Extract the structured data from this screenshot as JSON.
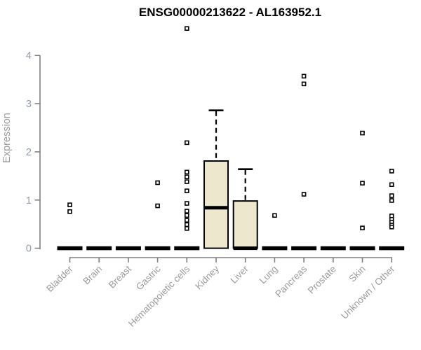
{
  "chart_data": {
    "type": "boxplot",
    "title": "ENSG00000213622 - AL163952.1",
    "ylabel": "Expression",
    "xlabel": "",
    "ylim": [
      0,
      4
    ],
    "yticks": [
      0,
      1,
      2,
      3,
      4
    ],
    "grid": false,
    "legend": "none",
    "categories": [
      "Bladder",
      "Brain",
      "Breast",
      "Gastric",
      "Hematopoietic cells",
      "Kidney",
      "Liver",
      "Lung",
      "Pancreas",
      "Prostate",
      "Skin",
      "Unknown / Other"
    ],
    "series": [
      {
        "name": "Bladder",
        "low": 0,
        "q1": 0,
        "median": 0,
        "q3": 0,
        "high": 0,
        "outliers": [
          0.9,
          0.76
        ]
      },
      {
        "name": "Brain",
        "low": 0,
        "q1": 0,
        "median": 0,
        "q3": 0,
        "high": 0,
        "outliers": []
      },
      {
        "name": "Breast",
        "low": 0,
        "q1": 0,
        "median": 0,
        "q3": 0,
        "high": 0,
        "outliers": []
      },
      {
        "name": "Gastric",
        "low": 0,
        "q1": 0,
        "median": 0,
        "q3": 0,
        "high": 0,
        "outliers": [
          1.36,
          0.88
        ]
      },
      {
        "name": "Hematopoietic cells",
        "low": 0,
        "q1": 0,
        "median": 0,
        "q3": 0,
        "high": 0,
        "outliers": [
          4.56,
          2.19,
          1.58,
          1.48,
          1.38,
          1.19,
          0.93,
          0.77,
          0.68,
          0.58,
          0.49,
          0.41
        ]
      },
      {
        "name": "Kidney",
        "low": 0,
        "q1": 0,
        "median": 0.84,
        "q3": 1.81,
        "high": 2.86,
        "outliers": []
      },
      {
        "name": "Liver",
        "low": 0,
        "q1": 0,
        "median": 0,
        "q3": 0.98,
        "high": 1.64,
        "outliers": []
      },
      {
        "name": "Lung",
        "low": 0,
        "q1": 0,
        "median": 0,
        "q3": 0,
        "high": 0,
        "outliers": [
          0.68
        ]
      },
      {
        "name": "Pancreas",
        "low": 0,
        "q1": 0,
        "median": 0,
        "q3": 0,
        "high": 0,
        "outliers": [
          3.57,
          3.41,
          1.12
        ]
      },
      {
        "name": "Prostate",
        "low": 0,
        "q1": 0,
        "median": 0,
        "q3": 0,
        "high": 0,
        "outliers": []
      },
      {
        "name": "Skin",
        "low": 0,
        "q1": 0,
        "median": 0,
        "q3": 0,
        "high": 0,
        "outliers": [
          2.39,
          1.35,
          0.42
        ]
      },
      {
        "name": "Unknown / Other",
        "low": 0,
        "q1": 0,
        "median": 0,
        "q3": 0,
        "high": 0,
        "outliers": [
          1.6,
          1.32,
          1.09,
          0.99,
          0.67,
          0.6,
          0.54,
          0.48,
          0.44
        ]
      }
    ],
    "colors": {
      "box_fill": "#EDE8CD",
      "box_stroke": "#000000",
      "median": "#000000",
      "whisker": "#000000",
      "outlier_fill": "#FFFFFF",
      "outlier_stroke": "#000000",
      "axis_line": "#808080",
      "axis_text": "#9B9B9B",
      "tick_number_text": "#939CAB",
      "title": "#000000",
      "background": "#FFFFFF"
    }
  }
}
